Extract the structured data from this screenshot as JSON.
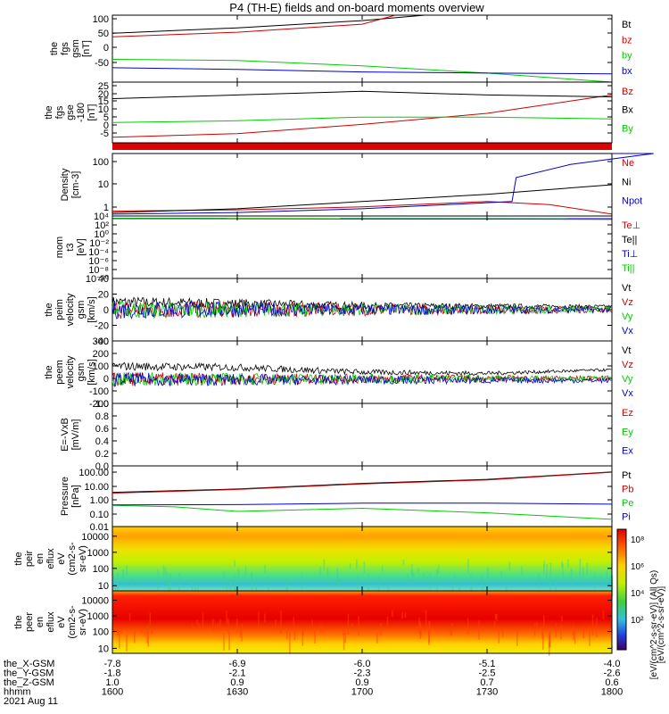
{
  "title": "P4 (TH-E) fields and on-board moments overview",
  "chart_data": [
    {
      "type": "line",
      "ylabel": [
        "the",
        "fgs",
        "gsm",
        "[nT]"
      ],
      "yticks": [
        "100",
        "50",
        "0",
        "-50"
      ],
      "ylim": [
        -80,
        105
      ],
      "series": [
        {
          "name": "Bt",
          "color": "#000000",
          "x": [
            1600,
            1630,
            1700,
            1715
          ],
          "values": [
            55,
            70,
            90,
            105
          ]
        },
        {
          "name": "bz",
          "color": "#cc0000",
          "x": [
            1600,
            1630,
            1700,
            1708
          ],
          "values": [
            45,
            58,
            80,
            105
          ]
        },
        {
          "name": "by",
          "color": "#00cc00",
          "x": [
            1600,
            1630,
            1700,
            1730,
            1800
          ],
          "values": [
            -17,
            -20,
            -35,
            -55,
            -80
          ]
        },
        {
          "name": "bx",
          "color": "#0000cc",
          "x": [
            1600,
            1630,
            1700,
            1730,
            1800
          ],
          "values": [
            -40,
            -45,
            -52,
            -55,
            -57
          ]
        }
      ]
    },
    {
      "type": "line",
      "ylabel": [
        "the",
        "fgs",
        "gse",
        "-180",
        "[nT]"
      ],
      "yticks": [
        "25",
        "20",
        "15",
        "10",
        "5",
        "0",
        "-5"
      ],
      "ylim": [
        -8,
        25
      ],
      "series": [
        {
          "name": "Bz",
          "color": "#cc0000",
          "x": [
            1600,
            1630,
            1700,
            1730,
            1800
          ],
          "values": [
            -5,
            -3,
            2,
            8,
            18
          ]
        },
        {
          "name": "Bx",
          "color": "#000000",
          "x": [
            1600,
            1630,
            1700,
            1730,
            1800
          ],
          "values": [
            16,
            18,
            20,
            18,
            17
          ]
        },
        {
          "name": "By",
          "color": "#00cc00",
          "x": [
            1600,
            1630,
            1700,
            1730,
            1800
          ],
          "values": [
            3,
            4,
            6,
            6,
            5
          ]
        }
      ]
    },
    {
      "type": "line",
      "ylabel": [
        "Density",
        "[cm-3]"
      ],
      "yticks": [
        "100",
        "10",
        "1"
      ],
      "yscale": "log",
      "ylim": [
        0.5,
        200
      ],
      "series": [
        {
          "name": "Ne",
          "color": "#cc0000",
          "x": [
            1600,
            1630,
            1700,
            1730,
            1745,
            1800
          ],
          "values": [
            0.8,
            0.9,
            1.2,
            2.0,
            1.5,
            0.6
          ]
        },
        {
          "name": "Ni",
          "color": "#000000",
          "x": [
            1600,
            1630,
            1700,
            1730,
            1800
          ],
          "values": [
            0.7,
            1.0,
            2.0,
            4.0,
            10
          ]
        },
        {
          "name": "Npot",
          "color": "#0000cc",
          "x": [
            1600,
            1630,
            1700,
            1736,
            1737,
            1750,
            1770,
            1800
          ],
          "values": [
            0.6,
            0.7,
            1.0,
            2.0,
            20,
            70,
            200,
            200
          ]
        }
      ]
    },
    {
      "type": "line",
      "ylabel": [
        "mom",
        "t3",
        "[eV]"
      ],
      "yticks": [
        "10⁴",
        "10²",
        "10⁰",
        "10⁻²",
        "10⁻⁴",
        "10⁻⁶",
        "10⁻⁸",
        "10⁻¹⁰"
      ],
      "yscale": "log",
      "ylim": [
        1e-10,
        10000
      ],
      "series": [
        {
          "name": "Te⊥",
          "color": "#cc0000",
          "x": [
            1600,
            1800
          ],
          "values": [
            3000,
            2000
          ]
        },
        {
          "name": "Te||",
          "color": "#000000",
          "x": [
            1600,
            1800
          ],
          "values": [
            2500,
            1800
          ]
        },
        {
          "name": "Ti⊥",
          "color": "#0000cc",
          "x": [
            1600,
            1800
          ],
          "values": [
            3000,
            2500
          ]
        },
        {
          "name": "Ti||",
          "color": "#00cc00",
          "x": [
            1600,
            1800
          ],
          "values": [
            2800,
            2200
          ]
        }
      ]
    },
    {
      "type": "line",
      "ylabel": [
        "the",
        "peim",
        "velocity",
        "gsm",
        "[km/s]"
      ],
      "yticks": [
        "40",
        "20",
        "0",
        "-20",
        "-40"
      ],
      "ylim": [
        -40,
        40
      ],
      "series": [
        {
          "name": "Vt",
          "color": "#000000",
          "x": [
            1600,
            1630,
            1700,
            1800
          ],
          "values": [
            10,
            8,
            5,
            4
          ]
        },
        {
          "name": "Vz",
          "color": "#cc0000",
          "x": [
            1600,
            1800
          ],
          "values": [
            0,
            0
          ]
        },
        {
          "name": "Vy",
          "color": "#00cc00",
          "x": [
            1600,
            1800
          ],
          "values": [
            0,
            0
          ]
        },
        {
          "name": "Vx",
          "color": "#0000cc",
          "x": [
            1600,
            1800
          ],
          "values": [
            0,
            0
          ]
        }
      ]
    },
    {
      "type": "line",
      "ylabel": [
        "the",
        "peem",
        "velocity",
        "gsm",
        "[km/s]"
      ],
      "yticks": [
        "300",
        "200",
        "100",
        "0",
        "-100",
        "-200"
      ],
      "ylim": [
        -220,
        300
      ],
      "series": [
        {
          "name": "Vt",
          "color": "#000000",
          "x": [
            1600,
            1630,
            1700,
            1730,
            1800
          ],
          "values": [
            90,
            80,
            40,
            30,
            60
          ]
        },
        {
          "name": "Vz",
          "color": "#cc0000",
          "x": [
            1600,
            1800
          ],
          "values": [
            -20,
            -10
          ]
        },
        {
          "name": "Vy",
          "color": "#00cc00",
          "x": [
            1600,
            1800
          ],
          "values": [
            -20,
            -10
          ]
        },
        {
          "name": "Vx",
          "color": "#0000cc",
          "x": [
            1600,
            1800
          ],
          "values": [
            -20,
            -30
          ]
        }
      ]
    },
    {
      "type": "line",
      "ylabel": [
        "E=-VxB",
        "[mV/m]"
      ],
      "yticks": [
        "1.0",
        "0.8",
        "0.6",
        "0.4",
        "0.2",
        "0.0"
      ],
      "ylim": [
        0,
        1
      ],
      "series": [
        {
          "name": "Ez",
          "color": "#cc0000",
          "x": [],
          "values": []
        },
        {
          "name": "Ey",
          "color": "#00cc00",
          "x": [],
          "values": []
        },
        {
          "name": "Ex",
          "color": "#0000cc",
          "x": [],
          "values": []
        }
      ]
    },
    {
      "type": "line",
      "ylabel": [
        "Pressure",
        "[nPa]"
      ],
      "yticks": [
        "100.00",
        "10.00",
        "1.00",
        "0.10",
        "0.01"
      ],
      "yscale": "log",
      "ylim": [
        0.01,
        100
      ],
      "series": [
        {
          "name": "Pt",
          "color": "#000000",
          "x": [
            1600,
            1630,
            1700,
            1730,
            1800
          ],
          "values": [
            1.8,
            3.0,
            7.0,
            13,
            40
          ]
        },
        {
          "name": "Pb",
          "color": "#cc0000",
          "x": [
            1600,
            1630,
            1700,
            1730,
            1800
          ],
          "values": [
            1.6,
            2.8,
            6.5,
            12,
            38
          ]
        },
        {
          "name": "Pe",
          "color": "#00cc00",
          "x": [
            1600,
            1615,
            1630,
            1700,
            1730,
            1800
          ],
          "values": [
            0.25,
            0.2,
            0.1,
            0.16,
            0.08,
            0.03
          ]
        },
        {
          "name": "Pi",
          "color": "#0000cc",
          "x": [
            1600,
            1630,
            1700,
            1730,
            1800
          ],
          "values": [
            0.27,
            0.28,
            0.35,
            0.35,
            0.3
          ]
        }
      ]
    },
    {
      "type": "heatmap",
      "ylabel": [
        "the",
        "peir",
        "en",
        "eflux",
        "eV",
        "(cm2-s-",
        "sr-eV)"
      ],
      "yticks": [
        "10000",
        "1000",
        "100",
        "10"
      ],
      "yscale": "log",
      "ylim": [
        5,
        25000
      ]
    },
    {
      "type": "heatmap",
      "ylabel": [
        "the",
        "peer",
        "en",
        "eflux",
        "eV",
        "(cm2-s-",
        "sr-eV)"
      ],
      "yticks": [
        "10000",
        "1000",
        "100",
        "10"
      ],
      "yscale": "log",
      "ylim": [
        5,
        25000
      ]
    }
  ],
  "colorbar": {
    "ticks": [
      "10⁸",
      "10⁶",
      "10⁴",
      "10²"
    ],
    "labels": [
      "[eV/(cm^2-s-sr-eV)] (All Qs)",
      "[eV/(cm^2-s-sr-eV)]"
    ]
  },
  "xaxis": {
    "x": [
      1600,
      1630,
      1700,
      1730,
      1800
    ],
    "rows": [
      {
        "label": "the_X-GSM",
        "values": [
          "-7.8",
          "-6.9",
          "-6.0",
          "-5.1",
          "-4.0"
        ]
      },
      {
        "label": "the_Y-GSM",
        "values": [
          "-1.8",
          "-2.1",
          "-2.3",
          "-2.5",
          "-2.6"
        ]
      },
      {
        "label": "the_Z-GSM",
        "values": [
          "1.0",
          "0.9",
          "0.9",
          "0.7",
          "0.6"
        ]
      },
      {
        "label": "hhmm",
        "values": [
          "1600",
          "1630",
          "1700",
          "1730",
          "1800"
        ]
      }
    ],
    "date": "2021 Aug 11"
  }
}
